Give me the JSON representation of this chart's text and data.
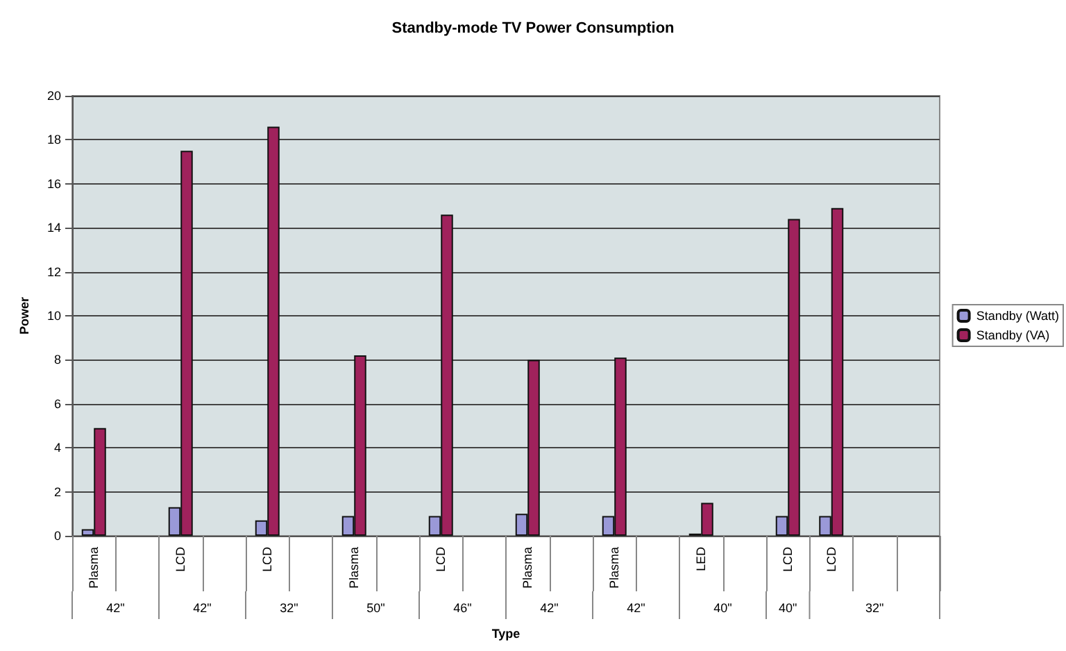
{
  "chart_data": {
    "type": "bar",
    "title": "Standby-mode TV Power Consumption",
    "xlabel": "Type",
    "ylabel": "Power",
    "categories": [
      "Plasma",
      null,
      "LCD",
      null,
      "LCD",
      null,
      "Plasma",
      null,
      "LCD",
      null,
      "Plasma",
      null,
      "Plasma",
      null,
      "LED",
      null,
      "LCD",
      "LCD",
      null,
      null
    ],
    "annotations": [
      "42\"",
      "42\"",
      "32\"",
      "50\"",
      "46\"",
      "42\"",
      "42\"",
      "40\"",
      "40\"",
      "32\""
    ],
    "series": [
      {
        "name": "Standby (Watt)",
        "color": "#9a99d8",
        "values": [
          0.3,
          null,
          1.3,
          null,
          0.7,
          null,
          0.9,
          null,
          0.9,
          null,
          1.0,
          null,
          0.9,
          null,
          0.1,
          null,
          0.9,
          0.9,
          null,
          null
        ]
      },
      {
        "name": "Standby (VA)",
        "color": "#a0225c",
        "values": [
          4.9,
          null,
          17.5,
          null,
          18.6,
          null,
          8.2,
          null,
          14.6,
          null,
          8.0,
          null,
          8.1,
          null,
          1.5,
          null,
          14.4,
          14.9,
          null,
          null
        ]
      }
    ],
    "ylim": [
      0,
      20
    ],
    "yticks": [
      0,
      2,
      4,
      6,
      8,
      10,
      12,
      14,
      16,
      18,
      20
    ],
    "grid": "y",
    "legend": "right"
  }
}
